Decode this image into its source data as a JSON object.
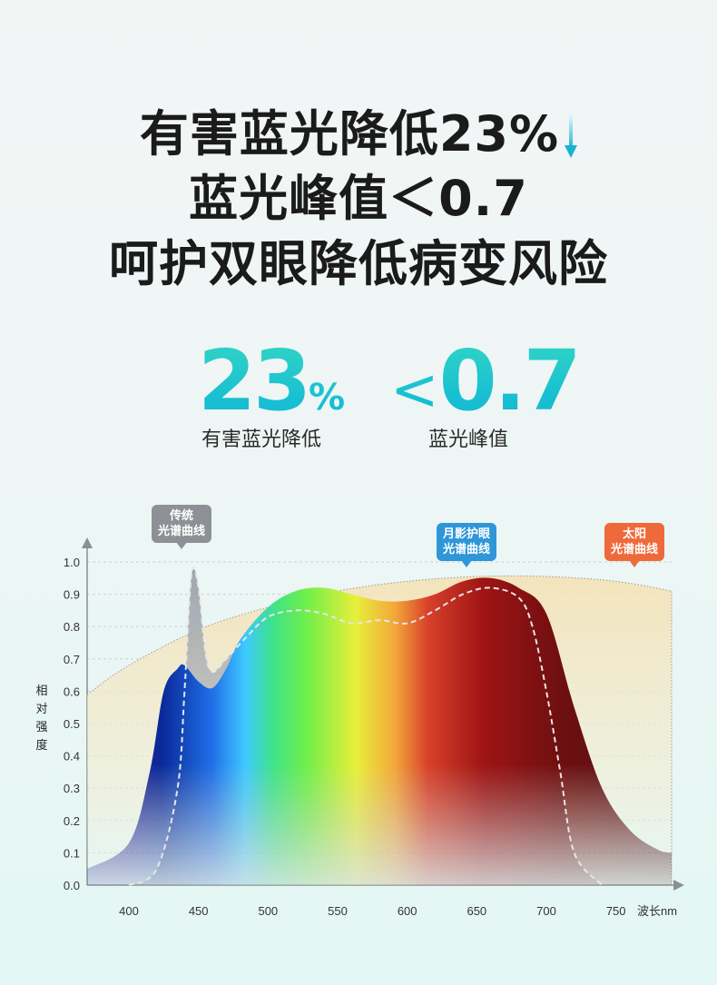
{
  "headline": {
    "line1": "有害蓝光降低23%",
    "line2": "蓝光峰值＜0.7",
    "line3": "呵护双眼降低病变风险"
  },
  "stats": [
    {
      "value": "23",
      "unit": "%",
      "label": "有害蓝光降低"
    },
    {
      "prefix": "<",
      "value": "0.7",
      "label": "蓝光峰值"
    }
  ],
  "callouts": {
    "traditional": [
      "传统",
      "光谱曲线"
    ],
    "moonshadow": [
      "月影护眼",
      "光谱曲线"
    ],
    "sun": [
      "太阳",
      "光谱曲线"
    ]
  },
  "colors": {
    "accent": "#1cc3d0",
    "traditional": "#8d9195",
    "moonshadow": "#2f96d8",
    "sun": "#ef6a3a"
  },
  "chart_data": {
    "type": "area",
    "xlabel": "波长nm",
    "ylabel": "相对强度",
    "xlim": [
      370,
      790
    ],
    "ylim": [
      0,
      1.0
    ],
    "x_ticks": [
      400,
      450,
      500,
      550,
      600,
      650,
      700,
      750
    ],
    "y_ticks": [
      "0.0",
      "0.1",
      "0.2",
      "0.3",
      "0.4",
      "0.5",
      "0.6",
      "0.7",
      "0.8",
      "0.9",
      "1.0"
    ],
    "grid": true,
    "series": [
      {
        "name": "太阳光谱曲线",
        "x": [
          370,
          400,
          450,
          500,
          550,
          600,
          650,
          700,
          750,
          790
        ],
        "y": [
          0.59,
          0.68,
          0.79,
          0.86,
          0.91,
          0.94,
          0.955,
          0.955,
          0.94,
          0.91
        ]
      },
      {
        "name": "传统光谱曲线",
        "x": [
          400,
          420,
          435,
          440,
          445,
          450,
          455,
          460,
          470,
          485,
          500,
          520,
          540,
          560,
          580,
          600,
          620,
          640,
          660,
          680,
          690,
          700,
          710,
          720,
          740
        ],
        "y": [
          0.0,
          0.05,
          0.3,
          0.6,
          0.96,
          0.92,
          0.72,
          0.66,
          0.7,
          0.77,
          0.83,
          0.85,
          0.84,
          0.81,
          0.82,
          0.81,
          0.85,
          0.9,
          0.92,
          0.89,
          0.8,
          0.6,
          0.35,
          0.1,
          0.0
        ]
      },
      {
        "name": "月影护眼光谱曲线",
        "x": [
          370,
          400,
          415,
          425,
          435,
          440,
          450,
          460,
          470,
          480,
          500,
          520,
          540,
          560,
          580,
          600,
          620,
          640,
          660,
          680,
          700,
          720,
          740,
          760,
          780,
          790
        ],
        "y": [
          0.05,
          0.13,
          0.35,
          0.6,
          0.67,
          0.68,
          0.63,
          0.61,
          0.67,
          0.76,
          0.86,
          0.91,
          0.92,
          0.9,
          0.88,
          0.88,
          0.9,
          0.94,
          0.95,
          0.92,
          0.84,
          0.55,
          0.3,
          0.17,
          0.11,
          0.1
        ]
      }
    ]
  }
}
